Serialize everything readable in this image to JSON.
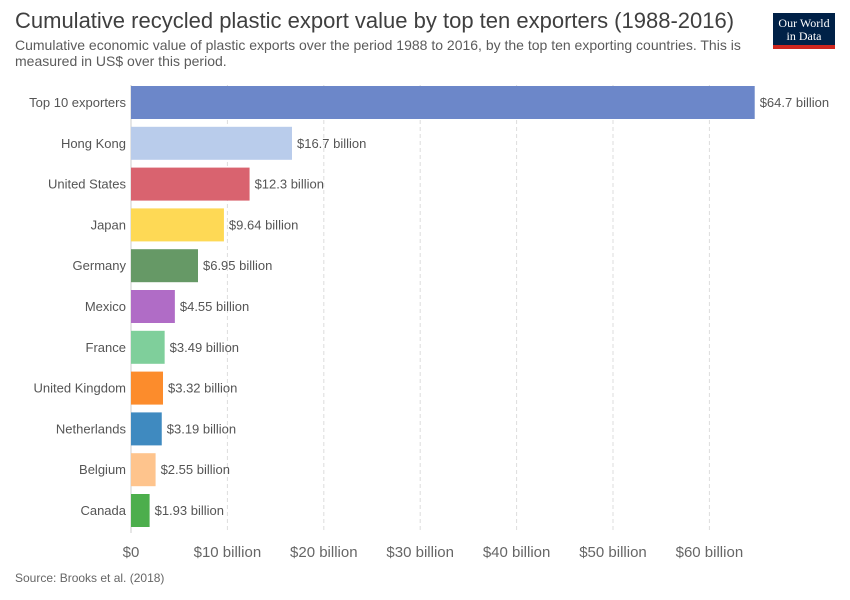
{
  "header": {
    "title": "Cumulative recycled plastic export value by top ten exporters (1988-2016)",
    "subtitle": "Cumulative economic value of plastic exports over the period 1988 to 2016, by the top ten exporting countries. This is measured in US$ over this period."
  },
  "logo": {
    "line1": "Our World",
    "line2": "in Data"
  },
  "footer": {
    "source": "Source: Brooks et al. (2018)"
  },
  "chart_data": {
    "type": "bar",
    "orientation": "horizontal",
    "title": "Cumulative recycled plastic export value by top ten exporters (1988-2016)",
    "xlabel": "",
    "ylabel": "",
    "xlim": [
      0,
      65
    ],
    "grid": true,
    "categories": [
      "Top 10 exporters",
      "Hong Kong",
      "United States",
      "Japan",
      "Germany",
      "Mexico",
      "France",
      "United Kingdom",
      "Netherlands",
      "Belgium",
      "Canada"
    ],
    "values": [
      64.7,
      16.7,
      12.3,
      9.64,
      6.95,
      4.55,
      3.49,
      3.32,
      3.19,
      2.55,
      1.93
    ],
    "value_labels": [
      "$64.7 billion",
      "$16.7 billion",
      "$12.3 billion",
      "$9.64 billion",
      "$6.95 billion",
      "$4.55 billion",
      "$3.49 billion",
      "$3.32 billion",
      "$3.19 billion",
      "$2.55 billion",
      "$1.93 billion"
    ],
    "colors": [
      "#6c87c9",
      "#b9cceb",
      "#d9636f",
      "#fed955",
      "#669966",
      "#b06cc6",
      "#7fcf9b",
      "#fc8c2c",
      "#3f8ac0",
      "#fec48d",
      "#4cae4c"
    ],
    "x_ticks": [
      0,
      10,
      20,
      30,
      40,
      50,
      60
    ],
    "x_tick_labels": [
      "$0",
      "$10 billion",
      "$20 billion",
      "$30 billion",
      "$40 billion",
      "$50 billion",
      "$60 billion"
    ]
  }
}
